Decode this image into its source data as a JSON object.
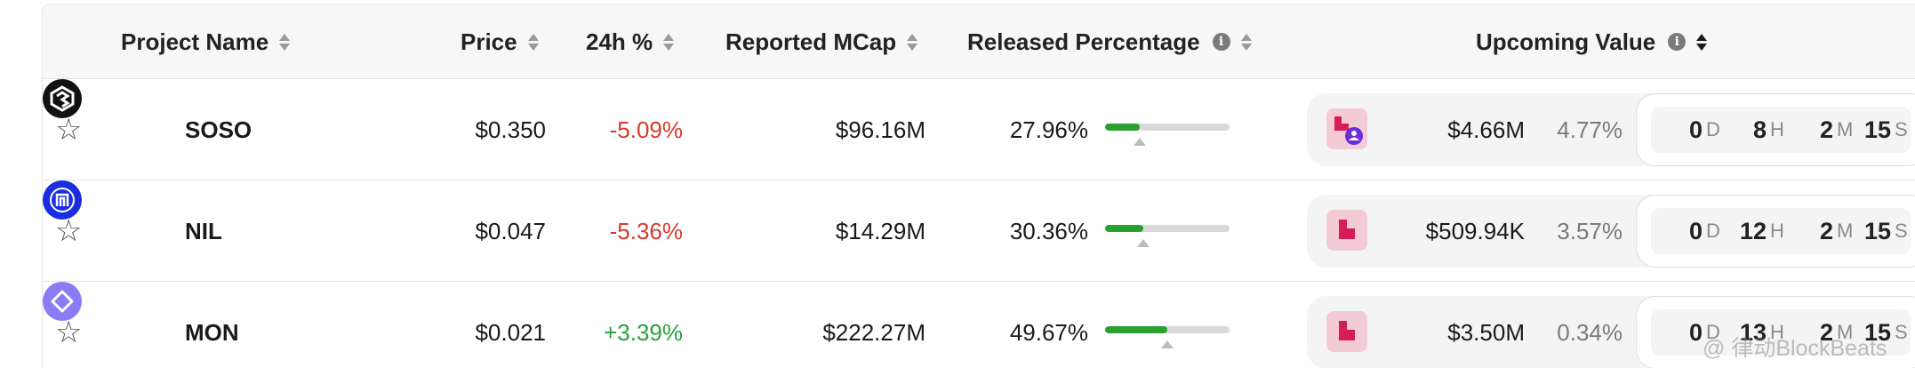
{
  "header": {
    "project_name": "Project Name",
    "price": "Price",
    "change_24h": "24h %",
    "reported_mcap": "Reported MCap",
    "released_percentage": "Released Percentage",
    "upcoming_value": "Upcoming Value",
    "info_glyph": "i"
  },
  "rows": [
    {
      "name": "SOSO",
      "price": "$0.350",
      "change": "-5.09%",
      "mcap": "$96.16M",
      "released": "27.96%",
      "released_fraction": 0.2796,
      "upcoming_value": "$4.66M",
      "upcoming_pct": "4.77%",
      "timer": {
        "d": "0",
        "h": "8",
        "m": "2",
        "s": "15"
      }
    },
    {
      "name": "NIL",
      "price": "$0.047",
      "change": "-5.36%",
      "mcap": "$14.29M",
      "released": "30.36%",
      "released_fraction": 0.3036,
      "upcoming_value": "$509.94K",
      "upcoming_pct": "3.57%",
      "timer": {
        "d": "0",
        "h": "12",
        "m": "2",
        "s": "15"
      }
    },
    {
      "name": "MON",
      "price": "$0.021",
      "change": "+3.39%",
      "mcap": "$222.27M",
      "released": "49.67%",
      "released_fraction": 0.4967,
      "upcoming_value": "$3.50M",
      "upcoming_pct": "0.34%",
      "timer": {
        "d": "0",
        "h": "13",
        "m": "2",
        "s": "15"
      }
    }
  ],
  "units": {
    "d": "D",
    "h": "H",
    "m": "M",
    "s": "S"
  },
  "watermark": "@ 律动BlockBeats",
  "colors": {
    "negative": "#d63a2a",
    "positive": "#23a33a",
    "progress": "#2aa12f"
  },
  "icons": {
    "star": "star-outline-icon",
    "soso": "soso-logo-icon",
    "nil": "nil-logo-icon",
    "mon": "mon-logo-icon"
  }
}
